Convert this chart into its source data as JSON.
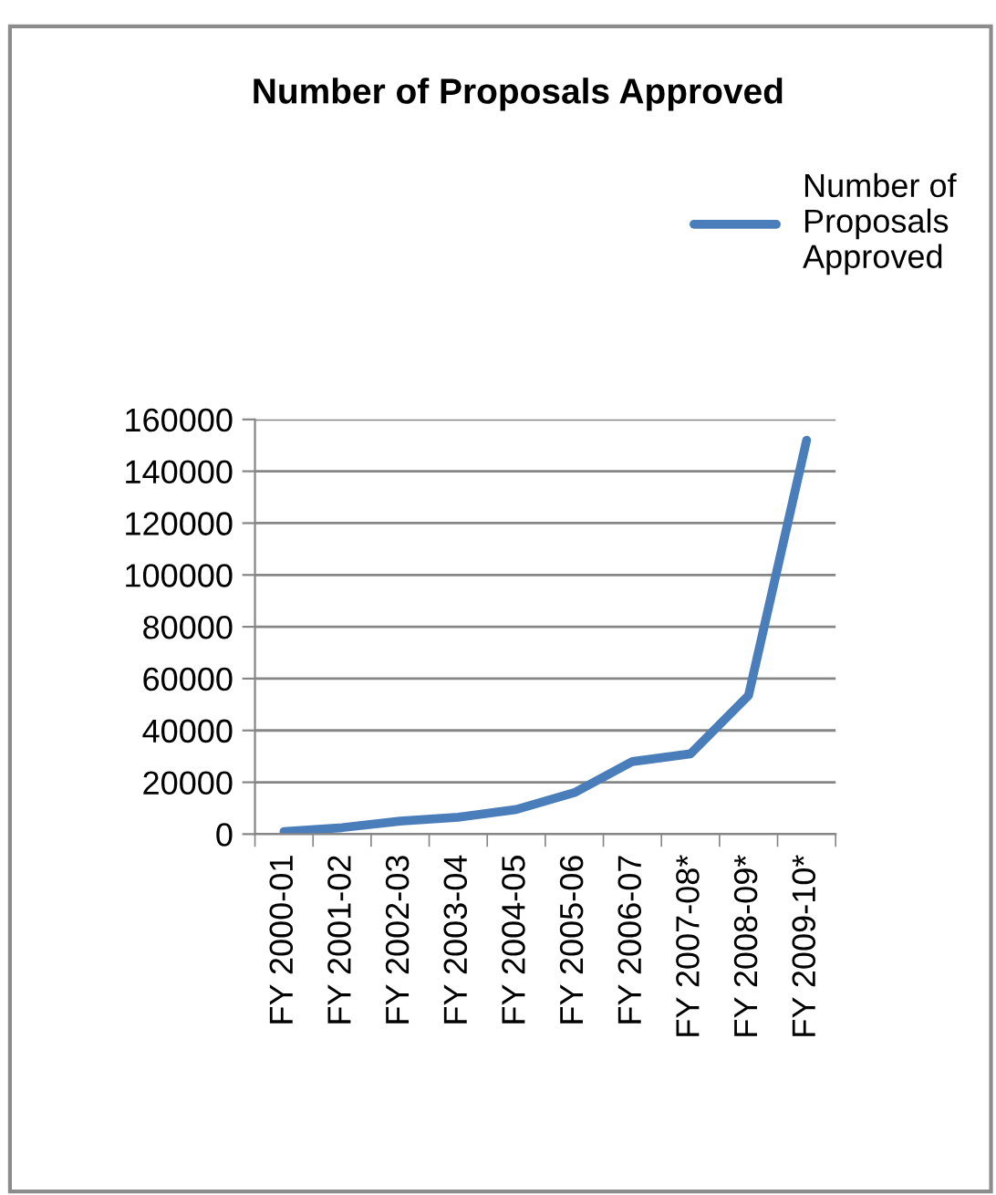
{
  "chart_data": {
    "type": "line",
    "title": "Number of Proposals Approved",
    "categories": [
      "FY 2000-01",
      "FY 2001-02",
      "FY 2002-03",
      "FY 2003-04",
      "FY 2004-05",
      "FY 2005-06",
      "FY 2006-07",
      "FY 2007-08*",
      "FY 2008-09*",
      "FY 2009-10*"
    ],
    "series": [
      {
        "name": "Number of\nProposals\nApproved",
        "color": "#4a7ebb",
        "values": [
          1000,
          2500,
          5000,
          6500,
          9500,
          16000,
          28000,
          31000,
          53500,
          152000
        ]
      }
    ],
    "ylim": [
      0,
      160000
    ],
    "yticks": [
      0,
      20000,
      40000,
      60000,
      80000,
      100000,
      120000,
      140000,
      160000
    ],
    "grid": "y",
    "legend": "top right",
    "marker": "none",
    "line_style": "solid"
  }
}
